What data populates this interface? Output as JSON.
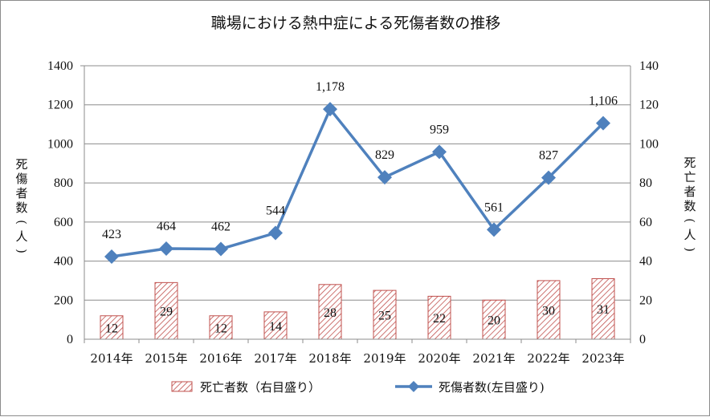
{
  "chart_data": {
    "type": "bar+line",
    "title": "職場における熱中症による死傷者数の推移",
    "categories": [
      "2014年",
      "2015年",
      "2016年",
      "2017年",
      "2018年",
      "2019年",
      "2020年",
      "2021年",
      "2022年",
      "2023年"
    ],
    "left_axis": {
      "label": "死傷者数(人)",
      "ylim": [
        0,
        1400
      ],
      "ticks": [
        "0",
        "200",
        "400",
        "600",
        "800",
        "1000",
        "1200",
        "1400"
      ]
    },
    "right_axis": {
      "label": "死亡者数(人)",
      "ylim": [
        0,
        140
      ],
      "ticks": [
        "0",
        "20",
        "40",
        "60",
        "80",
        "100",
        "120",
        "140"
      ]
    },
    "series": [
      {
        "name": "死亡者数（右目盛り）",
        "type": "bar",
        "axis": "right",
        "color": "#c0504d",
        "values": [
          12,
          29,
          12,
          14,
          28,
          25,
          22,
          20,
          30,
          31
        ],
        "labels": [
          "12",
          "29",
          "12",
          "14",
          "28",
          "25",
          "22",
          "20",
          "30",
          "31"
        ]
      },
      {
        "name": "死傷者数(左目盛り)",
        "type": "line",
        "axis": "left",
        "color": "#4f81bd",
        "marker": "diamond",
        "values": [
          423,
          464,
          462,
          544,
          1178,
          829,
          959,
          561,
          827,
          1106
        ],
        "labels": [
          "423",
          "464",
          "462",
          "544",
          "1,178",
          "829",
          "959",
          "561",
          "827",
          "1,106"
        ]
      }
    ],
    "grid": true,
    "legend_position": "bottom"
  }
}
